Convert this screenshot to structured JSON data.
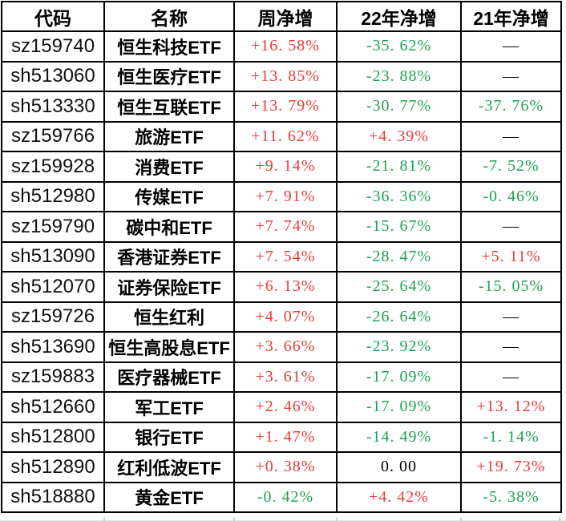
{
  "colors": {
    "up": "#e63c3c",
    "down": "#1ea054",
    "flat": "#000000",
    "border": "#000000",
    "ghost": "#ccd3da",
    "ghost_light": "#e4e7ea"
  },
  "table": {
    "columns": [
      {
        "label": "代码"
      },
      {
        "label": "名称"
      },
      {
        "label": "周净增"
      },
      {
        "label": "22年净增"
      },
      {
        "label": "21年净增"
      }
    ],
    "rows": [
      {
        "code": "sz159740",
        "name": "恒生科技ETF",
        "week": {
          "text": "+16. 58%",
          "dir": "up"
        },
        "y22": {
          "text": "-35. 62%",
          "dir": "down"
        },
        "y21": {
          "text": "—",
          "dir": "flat"
        }
      },
      {
        "code": "sh513060",
        "name": "恒生医疗ETF",
        "week": {
          "text": "+13. 85%",
          "dir": "up"
        },
        "y22": {
          "text": "-23. 88%",
          "dir": "down"
        },
        "y21": {
          "text": "—",
          "dir": "flat"
        }
      },
      {
        "code": "sh513330",
        "name": "恒生互联ETF",
        "week": {
          "text": "+13. 79%",
          "dir": "up"
        },
        "y22": {
          "text": "-30. 77%",
          "dir": "down"
        },
        "y21": {
          "text": "-37. 76%",
          "dir": "down"
        }
      },
      {
        "code": "sz159766",
        "name": "旅游ETF",
        "week": {
          "text": "+11. 62%",
          "dir": "up"
        },
        "y22": {
          "text": "+4. 39%",
          "dir": "up"
        },
        "y21": {
          "text": "—",
          "dir": "flat"
        }
      },
      {
        "code": "sz159928",
        "name": "消费ETF",
        "week": {
          "text": "+9. 14%",
          "dir": "up"
        },
        "y22": {
          "text": "-21. 81%",
          "dir": "down"
        },
        "y21": {
          "text": "-7. 52%",
          "dir": "down"
        }
      },
      {
        "code": "sh512980",
        "name": "传媒ETF",
        "week": {
          "text": "+7. 91%",
          "dir": "up"
        },
        "y22": {
          "text": "-36. 36%",
          "dir": "down"
        },
        "y21": {
          "text": "-0. 46%",
          "dir": "down"
        }
      },
      {
        "code": "sz159790",
        "name": "碳中和ETF",
        "week": {
          "text": "+7. 74%",
          "dir": "up"
        },
        "y22": {
          "text": "-15. 67%",
          "dir": "down"
        },
        "y21": {
          "text": "—",
          "dir": "flat"
        }
      },
      {
        "code": "sh513090",
        "name": "香港证券ETF",
        "week": {
          "text": "+7. 54%",
          "dir": "up"
        },
        "y22": {
          "text": "-28. 47%",
          "dir": "down"
        },
        "y21": {
          "text": "+5. 11%",
          "dir": "up"
        }
      },
      {
        "code": "sh512070",
        "name": "证券保险ETF",
        "week": {
          "text": "+6. 13%",
          "dir": "up"
        },
        "y22": {
          "text": "-25. 64%",
          "dir": "down"
        },
        "y21": {
          "text": "-15. 05%",
          "dir": "down"
        }
      },
      {
        "code": "sz159726",
        "name": "恒生红利",
        "week": {
          "text": "+4. 07%",
          "dir": "up"
        },
        "y22": {
          "text": "-26. 64%",
          "dir": "down"
        },
        "y21": {
          "text": "—",
          "dir": "flat"
        }
      },
      {
        "code": "sh513690",
        "name": "恒生高股息ETF",
        "week": {
          "text": "+3. 66%",
          "dir": "up"
        },
        "y22": {
          "text": "-23. 92%",
          "dir": "down"
        },
        "y21": {
          "text": "—",
          "dir": "flat"
        }
      },
      {
        "code": "sz159883",
        "name": "医疗器械ETF",
        "week": {
          "text": "+3. 61%",
          "dir": "up"
        },
        "y22": {
          "text": "-17. 09%",
          "dir": "down"
        },
        "y21": {
          "text": "—",
          "dir": "flat"
        }
      },
      {
        "code": "sh512660",
        "name": "军工ETF",
        "week": {
          "text": "+2. 46%",
          "dir": "up"
        },
        "y22": {
          "text": "-17. 09%",
          "dir": "down"
        },
        "y21": {
          "text": "+13. 12%",
          "dir": "up"
        }
      },
      {
        "code": "sh512800",
        "name": "银行ETF",
        "week": {
          "text": "+1. 47%",
          "dir": "up"
        },
        "y22": {
          "text": "-14. 49%",
          "dir": "down"
        },
        "y21": {
          "text": "-1. 14%",
          "dir": "down"
        }
      },
      {
        "code": "sh512890",
        "name": "红利低波ETF",
        "week": {
          "text": "+0. 38%",
          "dir": "up"
        },
        "y22": {
          "text": "0. 00",
          "dir": "flat"
        },
        "y21": {
          "text": "+19. 73%",
          "dir": "up"
        }
      },
      {
        "code": "sh518880",
        "name": "黄金ETF",
        "week": {
          "text": "-0. 42%",
          "dir": "down"
        },
        "y22": {
          "text": "+4. 42%",
          "dir": "up"
        },
        "y21": {
          "text": "-5. 38%",
          "dir": "down"
        }
      }
    ]
  },
  "chart_data": {
    "type": "table",
    "title": "",
    "columns": [
      "代码",
      "名称",
      "周净增",
      "22年净增",
      "21年净增"
    ],
    "rows": [
      [
        "sz159740",
        "恒生科技ETF",
        "+16.58%",
        "-35.62%",
        "—"
      ],
      [
        "sh513060",
        "恒生医疗ETF",
        "+13.85%",
        "-23.88%",
        "—"
      ],
      [
        "sh513330",
        "恒生互联ETF",
        "+13.79%",
        "-30.77%",
        "-37.76%"
      ],
      [
        "sz159766",
        "旅游ETF",
        "+11.62%",
        "+4.39%",
        "—"
      ],
      [
        "sz159928",
        "消费ETF",
        "+9.14%",
        "-21.81%",
        "-7.52%"
      ],
      [
        "sh512980",
        "传媒ETF",
        "+7.91%",
        "-36.36%",
        "-0.46%"
      ],
      [
        "sz159790",
        "碳中和ETF",
        "+7.74%",
        "-15.67%",
        "—"
      ],
      [
        "sh513090",
        "香港证券ETF",
        "+7.54%",
        "-28.47%",
        "+5.11%"
      ],
      [
        "sh512070",
        "证券保险ETF",
        "+6.13%",
        "-25.64%",
        "-15.05%"
      ],
      [
        "sz159726",
        "恒生红利",
        "+4.07%",
        "-26.64%",
        "—"
      ],
      [
        "sh513690",
        "恒生高股息ETF",
        "+3.66%",
        "-23.92%",
        "—"
      ],
      [
        "sz159883",
        "医疗器械ETF",
        "+3.61%",
        "-17.09%",
        "—"
      ],
      [
        "sh512660",
        "军工ETF",
        "+2.46%",
        "-17.09%",
        "+13.12%"
      ],
      [
        "sh512800",
        "银行ETF",
        "+1.47%",
        "-14.49%",
        "-1.14%"
      ],
      [
        "sh512890",
        "红利低波ETF",
        "+0.38%",
        "0.00",
        "+19.73%"
      ],
      [
        "sh518880",
        "黄金ETF",
        "-0.42%",
        "+4.42%",
        "-5.38%"
      ]
    ],
    "color_rule": "positive values red (#e63c3c), negative values green (#1ea054), zero and — black"
  }
}
